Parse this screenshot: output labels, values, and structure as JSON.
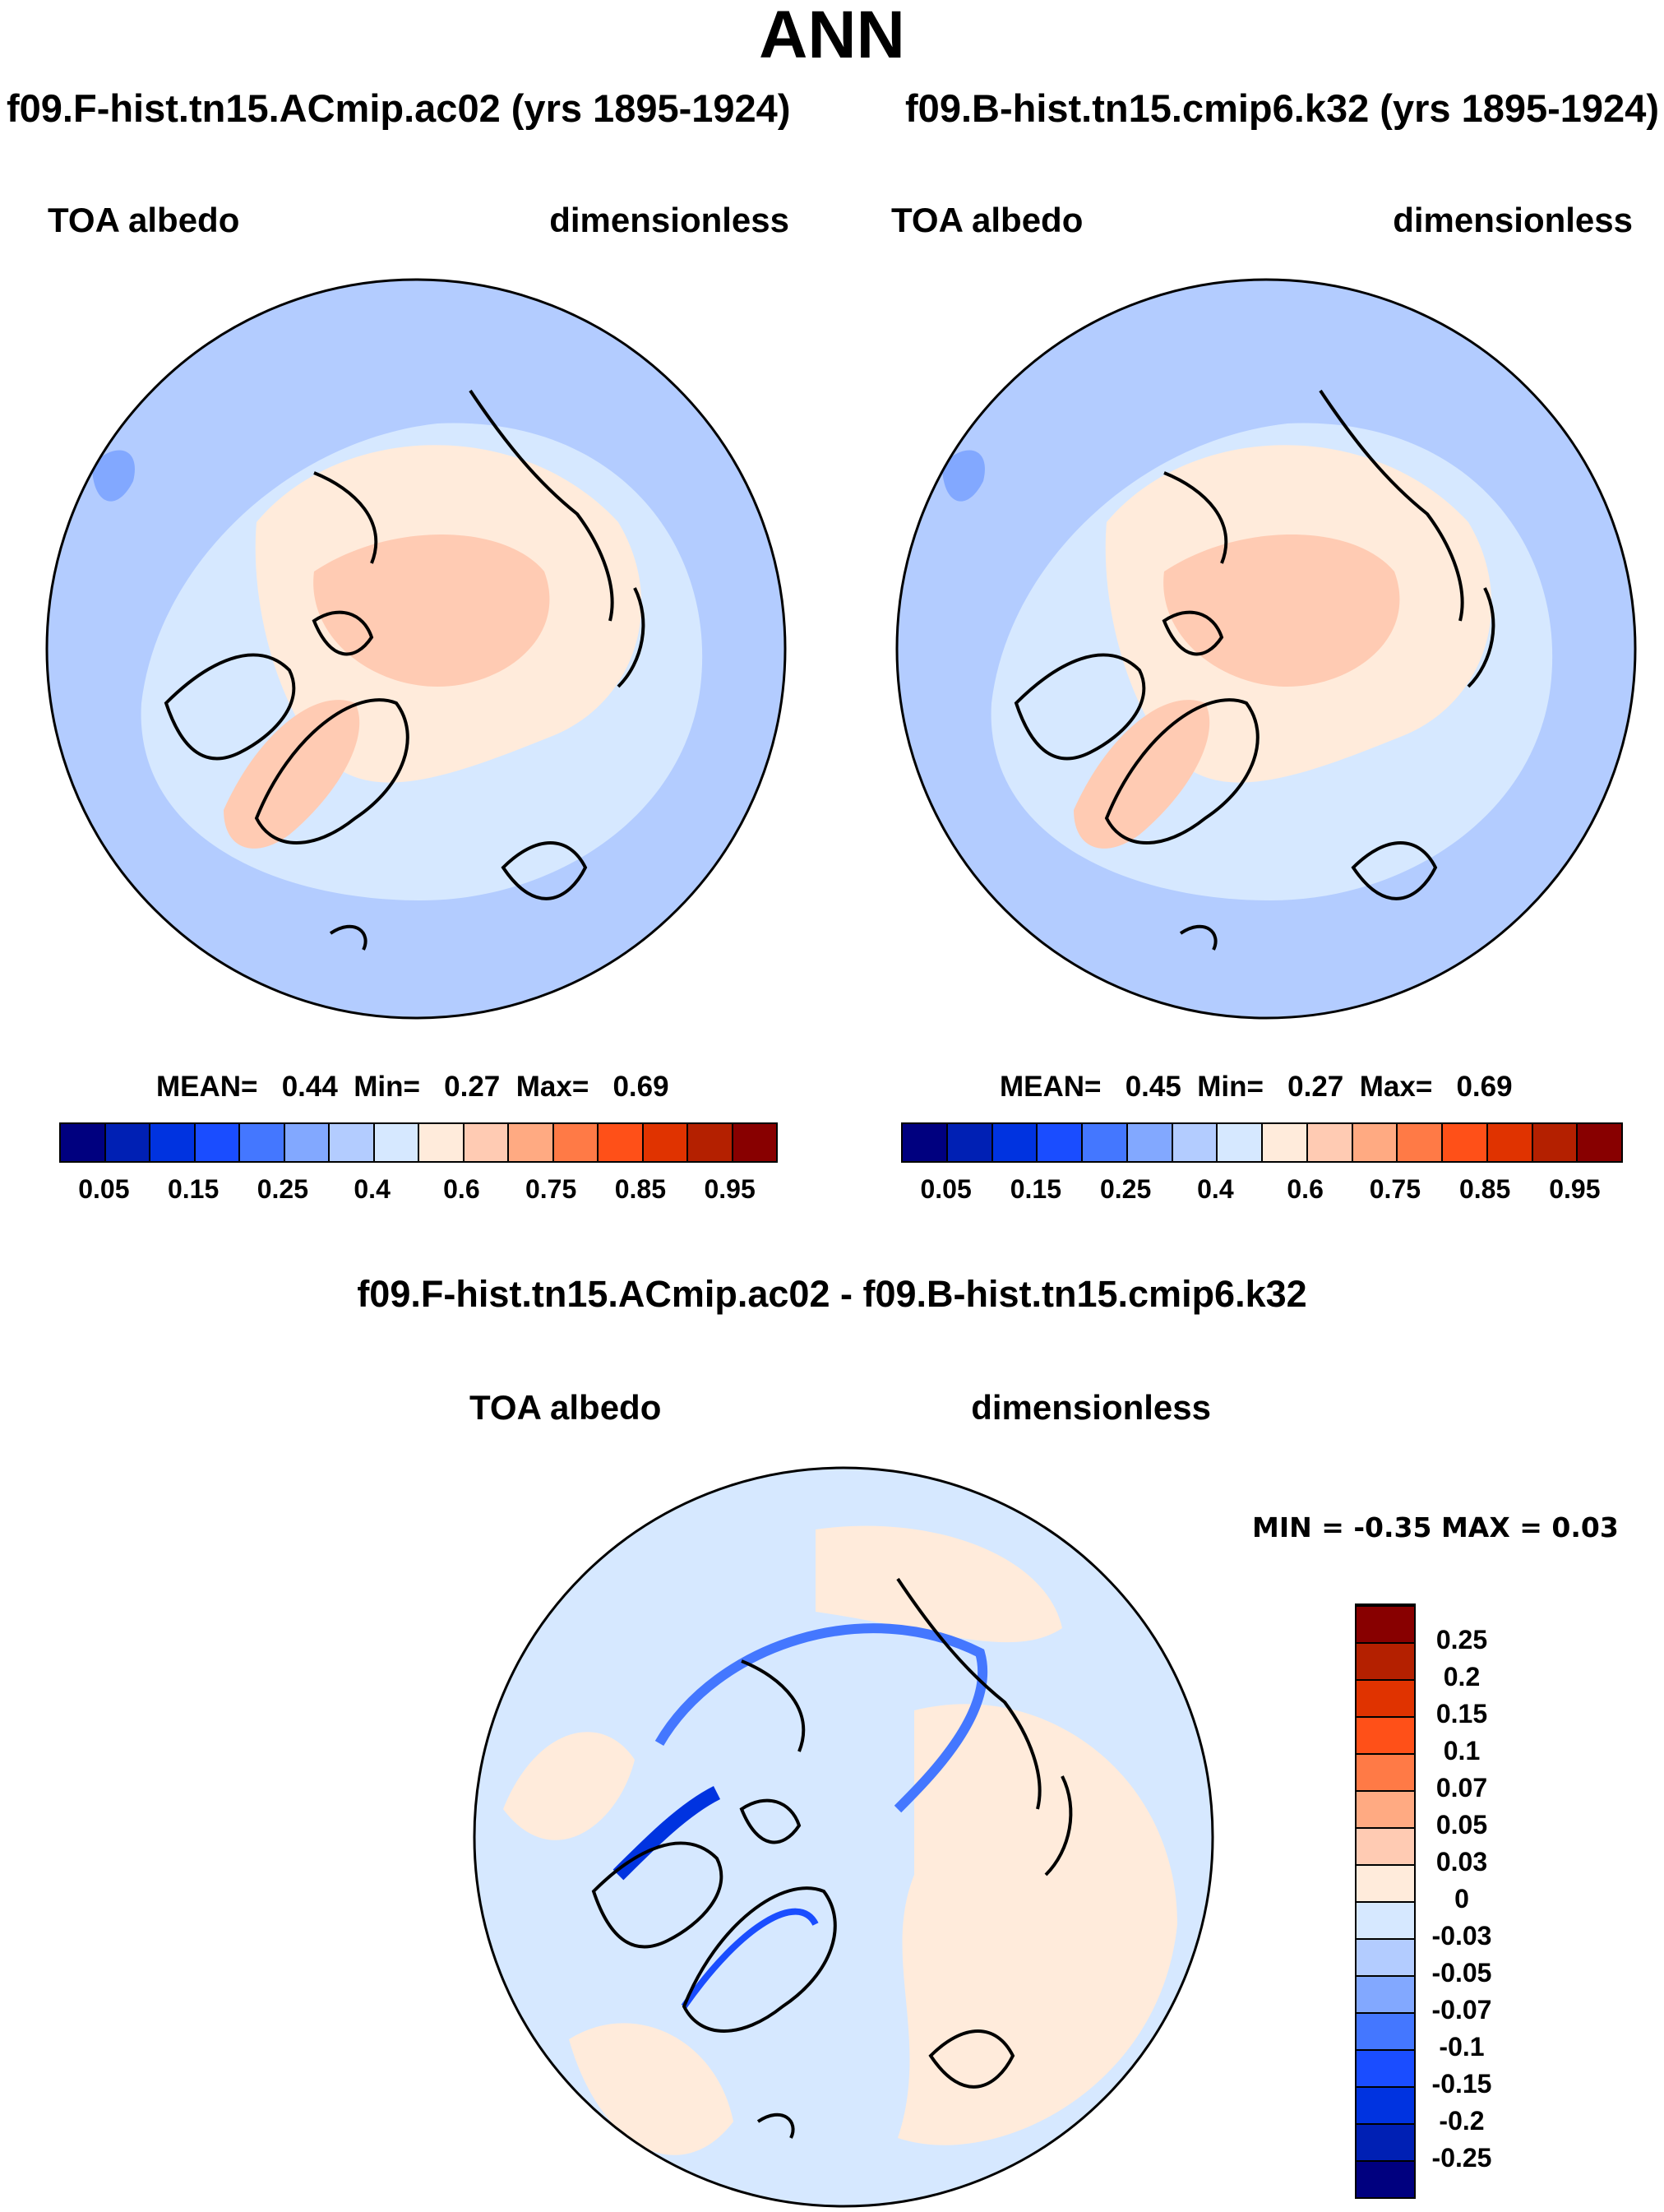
{
  "title": "ANN",
  "panels": [
    {
      "case": "f09.F-hist.tn15.ACmip.ac02 (yrs 1895-1924)",
      "variable": "TOA albedo",
      "units": "dimensionless",
      "stats": {
        "mean_label": "MEAN=",
        "mean": "0.44",
        "min_label": "Min=",
        "min": "0.27",
        "max_label": "Max=",
        "max": "0.69"
      }
    },
    {
      "case": "f09.B-hist.tn15.cmip6.k32 (yrs 1895-1924)",
      "variable": "TOA albedo",
      "units": "dimensionless",
      "stats": {
        "mean_label": "MEAN=",
        "mean": "0.45",
        "min_label": "Min=",
        "min": "0.27",
        "max_label": "Max=",
        "max": "0.69"
      }
    }
  ],
  "diff": {
    "title": "f09.F-hist.tn15.ACmip.ac02 - f09.B-hist.tn15.cmip6.k32",
    "variable": "TOA albedo",
    "units": "dimensionless",
    "minmax": "MIN =  -0.35 MAX =   0.03"
  },
  "colorbar_ticks": [
    "0.05",
    "0.15",
    "0.25",
    "0.4",
    "0.6",
    "0.75",
    "0.85",
    "0.95"
  ],
  "diff_colorbar_ticks": [
    "-0.25",
    "-0.2",
    "-0.15",
    "-0.1",
    "-0.07",
    "-0.05",
    "-0.03",
    "0",
    "0.03",
    "0.05",
    "0.07",
    "0.1",
    "0.15",
    "0.2",
    "0.25"
  ],
  "colors": [
    "#00007f",
    "#0020b4",
    "#0033e0",
    "#1a4dff",
    "#4477ff",
    "#82a8ff",
    "#b3ccff",
    "#d6e8ff",
    "#ffebdb",
    "#ffcbb3",
    "#ffaa82",
    "#ff7a46",
    "#ff5018",
    "#e03300",
    "#b42000",
    "#880000"
  ],
  "chart_data": {
    "type": "heatmap",
    "projection": "north polar stereographic",
    "levels_abs": [
      0.05,
      0.1,
      0.15,
      0.2,
      0.25,
      0.3,
      0.35,
      0.4,
      0.5,
      0.6,
      0.7,
      0.75,
      0.8,
      0.85,
      0.9,
      0.95
    ],
    "levels_diff": [
      -0.25,
      -0.2,
      -0.15,
      -0.1,
      -0.07,
      -0.05,
      -0.03,
      0,
      0.03,
      0.05,
      0.07,
      0.1,
      0.15,
      0.2,
      0.25
    ]
  }
}
